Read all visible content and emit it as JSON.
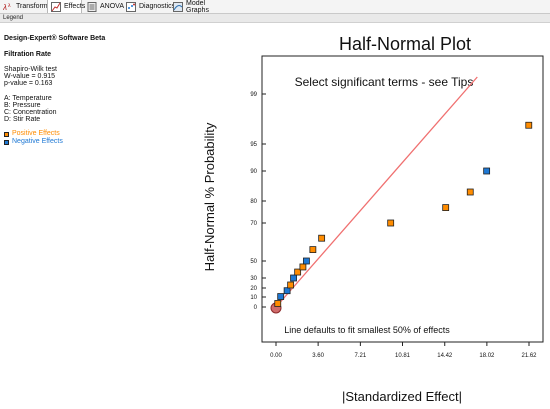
{
  "toolbar": {
    "tabs": [
      {
        "label": "Transform",
        "icon": "transform-icon"
      },
      {
        "label": "Effects",
        "icon": "effects-icon",
        "active": true
      },
      {
        "label": "ANOVA",
        "icon": "anova-icon"
      },
      {
        "label": "Diagnostics",
        "icon": "diagnostics-icon"
      },
      {
        "label": "Model Graphs",
        "icon": "model-graphs-icon"
      }
    ]
  },
  "legend_panel": {
    "header": "Legend",
    "software": "Design-Expert® Software Beta",
    "response": "Filtration Rate",
    "test_name": "Shapiro-Wilk test",
    "w_value": "W-value = 0.915",
    "p_value": "p-value = 0.163",
    "factors": [
      "A: Temperature",
      "B: Pressure",
      "C: Concentration",
      "D: Stir Rate"
    ],
    "positive_label": "Positive Effects",
    "negative_label": "Negative Effects",
    "positive_color": "#ff8c00",
    "negative_color": "#1e78d4"
  },
  "plot": {
    "instruction": "Select significant terms - see Tips",
    "footnote": "Line defaults to fit smallest 50% of effects",
    "line_color": "#f07070"
  },
  "chart_data": {
    "type": "scatter",
    "title": "Half-Normal Plot",
    "xlabel": "|Standardized Effect|",
    "ylabel": "Half-Normal % Probability",
    "x_ticks": [
      "0.00",
      "3.60",
      "7.21",
      "10.81",
      "14.42",
      "18.02",
      "21.62"
    ],
    "y_ticks": [
      "0",
      "10",
      "20",
      "30",
      "50",
      "70",
      "80",
      "90",
      "95",
      "99"
    ],
    "xlim": [
      0,
      21.62
    ],
    "ylim": [
      0,
      99
    ],
    "y_scale": "half-normal probability",
    "grid": false,
    "reference_line": {
      "from": [
        0,
        0
      ],
      "to": [
        17.2,
        99.5
      ]
    },
    "points": [
      {
        "x": 0.0,
        "y": 0.0,
        "sign": "error",
        "selected": true
      },
      {
        "x": 0.15,
        "y": 3.5,
        "sign": "positive"
      },
      {
        "x": 0.4,
        "y": 10.5,
        "sign": "negative"
      },
      {
        "x": 0.95,
        "y": 17,
        "sign": "negative"
      },
      {
        "x": 1.25,
        "y": 23,
        "sign": "positive"
      },
      {
        "x": 1.5,
        "y": 30,
        "sign": "negative"
      },
      {
        "x": 1.85,
        "y": 37,
        "sign": "positive"
      },
      {
        "x": 2.3,
        "y": 43,
        "sign": "positive"
      },
      {
        "x": 2.6,
        "y": 50,
        "sign": "negative"
      },
      {
        "x": 3.15,
        "y": 56,
        "sign": "positive"
      },
      {
        "x": 3.9,
        "y": 62,
        "sign": "positive"
      },
      {
        "x": 9.8,
        "y": 70,
        "sign": "positive"
      },
      {
        "x": 14.5,
        "y": 77,
        "sign": "positive"
      },
      {
        "x": 16.6,
        "y": 83,
        "sign": "positive"
      },
      {
        "x": 18.0,
        "y": 90,
        "sign": "negative"
      },
      {
        "x": 21.6,
        "y": 96.5,
        "sign": "positive"
      }
    ]
  }
}
